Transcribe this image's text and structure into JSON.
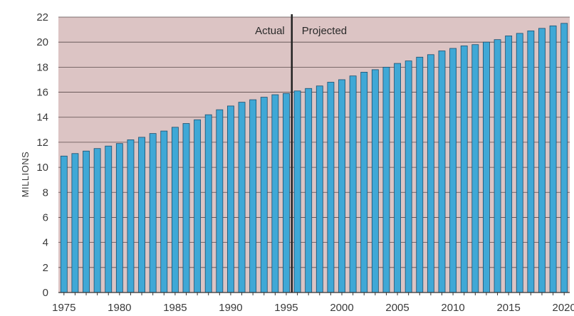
{
  "chart_data": {
    "type": "bar",
    "title": "",
    "xlabel": "",
    "ylabel": "MILLIONS",
    "ylim": [
      0,
      22
    ],
    "y_ticks": [
      "0",
      "2",
      "4",
      "6",
      "8",
      "10",
      "12",
      "14",
      "16",
      "18",
      "20",
      "22"
    ],
    "x_tick_years": [
      "1975",
      "1980",
      "1985",
      "1990",
      "1995",
      "2000",
      "2005",
      "2010",
      "2015",
      "2020"
    ],
    "grid": true,
    "legend": "none",
    "categories": [
      1975,
      1976,
      1977,
      1978,
      1979,
      1980,
      1981,
      1982,
      1983,
      1984,
      1985,
      1986,
      1987,
      1988,
      1989,
      1990,
      1991,
      1992,
      1993,
      1994,
      1995,
      1996,
      1997,
      1998,
      1999,
      2000,
      2001,
      2002,
      2003,
      2004,
      2005,
      2006,
      2007,
      2008,
      2009,
      2010,
      2011,
      2012,
      2013,
      2014,
      2015,
      2016,
      2017,
      2018,
      2019,
      2020
    ],
    "values": [
      10.9,
      11.1,
      11.3,
      11.5,
      11.7,
      11.9,
      12.2,
      12.4,
      12.7,
      12.9,
      13.2,
      13.5,
      13.8,
      14.2,
      14.6,
      14.9,
      15.2,
      15.4,
      15.6,
      15.8,
      15.9,
      16.1,
      16.3,
      16.5,
      16.8,
      17.0,
      17.3,
      17.6,
      17.8,
      18.0,
      18.3,
      18.5,
      18.8,
      19.0,
      19.3,
      19.5,
      19.7,
      19.8,
      20.0,
      20.2,
      20.5,
      20.7,
      20.9,
      21.1,
      21.3,
      21.5
    ],
    "divider": {
      "between": [
        1995,
        1996
      ],
      "left_label": "Actual",
      "right_label": "Projected"
    },
    "colors": {
      "bar_fill": "#3fa8d6",
      "bar_stroke": "#1c4f6e",
      "plot_bg": "#dcc4c4",
      "grid": "#5a4a4a",
      "divider": "#222222"
    }
  }
}
